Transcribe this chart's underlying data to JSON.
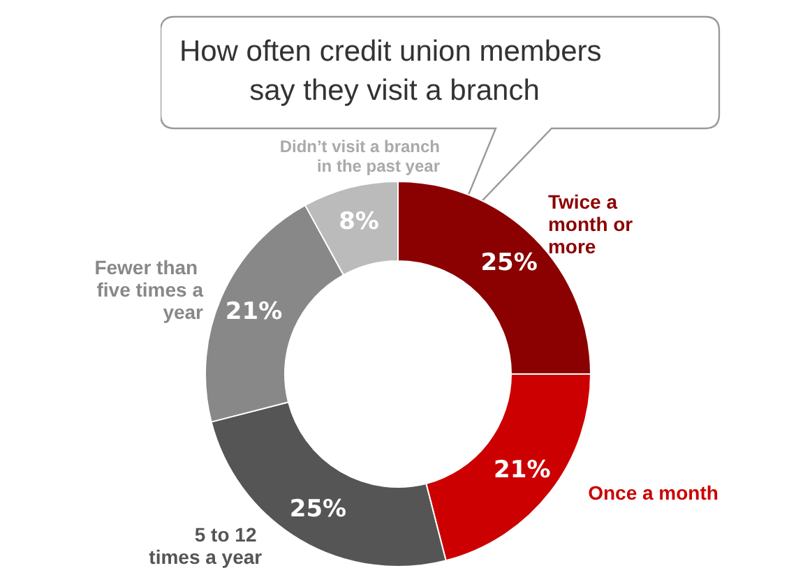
{
  "chart_data": {
    "type": "donut",
    "title": "How often credit union members say they visit a branch",
    "categories": [
      "Twice a month or more",
      "Once a month",
      "5 to 12 times a year",
      "Fewer than five times a year",
      "Didn’t visit a branch in the past year"
    ],
    "values": [
      25,
      21,
      25,
      21,
      8
    ],
    "colors": [
      "#8b0000",
      "#cc0000",
      "#555555",
      "#888888",
      "#bbbbbb"
    ],
    "value_labels": [
      "25%",
      "21%",
      "25%",
      "21%",
      "8%"
    ]
  }
}
